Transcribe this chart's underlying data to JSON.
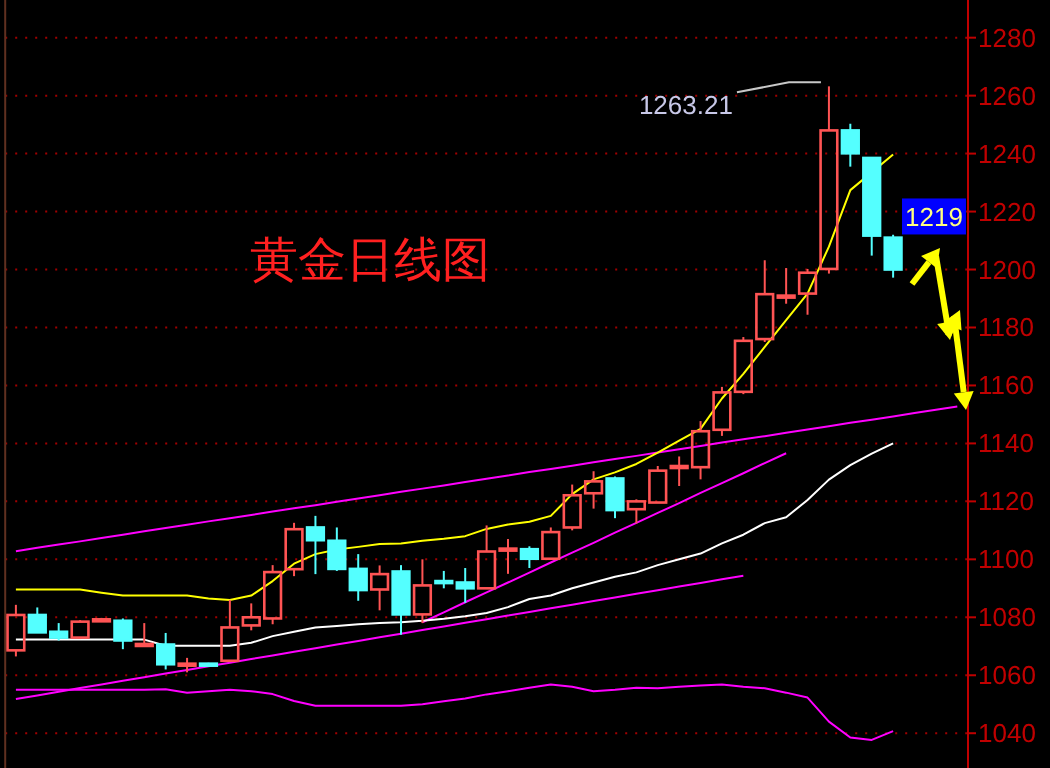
{
  "chart_data": {
    "type": "candlestick",
    "title": "黄金日线图",
    "categories": [
      null,
      null,
      null,
      null,
      null,
      null,
      null,
      null,
      null,
      null,
      null,
      null,
      null,
      null,
      null,
      null,
      null,
      null,
      null,
      null,
      null,
      null,
      null,
      null,
      null,
      null,
      null,
      null,
      null,
      null,
      null,
      null,
      null,
      null,
      null,
      null,
      null,
      null,
      null,
      null,
      null,
      null,
      null,
      null,
      null
    ],
    "ohlc": [
      [
        1068.6,
        1084.3,
        1066.5,
        1080.8
      ],
      [
        1080.8,
        1083.4,
        1074.8,
        1074.8
      ],
      [
        1075,
        1078,
        1072,
        1073
      ],
      [
        1073,
        1079,
        1072.5,
        1078.5
      ],
      [
        1079,
        1079.8,
        1078.6,
        1079.3
      ],
      [
        1078.8,
        1079.6,
        1069,
        1072
      ],
      [
        1070.6,
        1078,
        1070,
        1070.8
      ],
      [
        1070.6,
        1074.6,
        1062,
        1063.8
      ],
      [
        1063.6,
        1066,
        1061,
        1064
      ],
      [
        1064,
        1064.3,
        1063.5,
        1063.6
      ],
      [
        1065,
        1086,
        1065,
        1076.5
      ],
      [
        1077.2,
        1084.8,
        1075.5,
        1080
      ],
      [
        1079.6,
        1098,
        1077.6,
        1095.6
      ],
      [
        1096.6,
        1112.6,
        1094.2,
        1110.4
      ],
      [
        1111,
        1115,
        1094.9,
        1106.6
      ],
      [
        1106.4,
        1111,
        1096,
        1096.7
      ],
      [
        1096.7,
        1101.8,
        1085.7,
        1089.4
      ],
      [
        1089.6,
        1097.9,
        1082.4,
        1094.9
      ],
      [
        1095.8,
        1098,
        1074,
        1081
      ],
      [
        1081,
        1100,
        1078,
        1091
      ],
      [
        1092.5,
        1096,
        1090,
        1092.2
      ],
      [
        1092,
        1097,
        1085,
        1090
      ],
      [
        1090,
        1111.7,
        1090,
        1102.7
      ],
      [
        1103.3,
        1107,
        1095,
        1103.7
      ],
      [
        1103.5,
        1104.5,
        1097,
        1100.2
      ],
      [
        1100.2,
        1111,
        1100.2,
        1109.4
      ],
      [
        1111,
        1125.8,
        1110,
        1122.1
      ],
      [
        1122.8,
        1130.4,
        1117.5,
        1126.9
      ],
      [
        1127.9,
        1128.6,
        1114.2,
        1117
      ],
      [
        1117.3,
        1120.7,
        1112.4,
        1120
      ],
      [
        1119.6,
        1132.2,
        1119.6,
        1130.6
      ],
      [
        1131.8,
        1135.5,
        1125.3,
        1132.2
      ],
      [
        1131.8,
        1147.7,
        1127.6,
        1144.2
      ],
      [
        1144.7,
        1159.5,
        1142.6,
        1157.6
      ],
      [
        1157.8,
        1176.7,
        1157,
        1175.4
      ],
      [
        1176,
        1203.2,
        1175,
        1191.5
      ],
      [
        1190.6,
        1200.5,
        1188.2,
        1191
      ],
      [
        1191.7,
        1200.2,
        1184.4,
        1198.9
      ],
      [
        1200.2,
        1263.21,
        1198.6,
        1248
      ],
      [
        1248,
        1250.3,
        1235.5,
        1240.1
      ],
      [
        1238.5,
        1238.5,
        1204.8,
        1211.7
      ],
      [
        1211,
        1212,
        1197.2,
        1200
      ],
      null,
      null,
      null
    ],
    "colors": [
      "#ff5454",
      "#54ffff",
      "#54ffff",
      "#ff5454",
      "#ff5454",
      "#54ffff",
      "#ff5454",
      "#54ffff",
      "#ff5454",
      "#54ffff",
      "#ff5454",
      "#ff5454",
      "#ff5454",
      "#ff5454",
      "#54ffff",
      "#54ffff",
      "#54ffff",
      "#ff5454",
      "#54ffff",
      "#ff5454",
      "#54ffff",
      "#54ffff",
      "#ff5454",
      "#ff5454",
      "#54ffff",
      "#ff5454",
      "#ff5454",
      "#ff5454",
      "#54ffff",
      "#ff5454",
      "#ff5454",
      "#ff5454",
      "#ff5454",
      "#ff5454",
      "#ff5454",
      "#ff5454",
      "#ff5454",
      "#ff5454",
      "#ff5454",
      "#54ffff",
      "#54ffff",
      "#54ffff",
      null,
      null,
      null
    ],
    "series": [
      {
        "type": "line",
        "color": "#ff00ff",
        "values": [
          1102.8,
          1104.0,
          1105.1,
          1106.2,
          1107.4,
          1108.5,
          1109.7,
          1110.8,
          1111.9,
          1113.1,
          1114.2,
          1115.3,
          1116.5,
          1117.6,
          1118.7,
          1119.9,
          1121.0,
          1122.1,
          1123.3,
          1124.4,
          1125.5,
          1126.7,
          1127.8,
          1128.9,
          1130.1,
          1131.2,
          1132.3,
          1133.5,
          1134.6,
          1135.7,
          1136.9,
          1138.0,
          1139.1,
          1140.3,
          1141.4,
          1142.5,
          1143.7,
          1144.8,
          1145.9,
          1147.1,
          1148.2,
          1149.3,
          1150.5,
          1151.6,
          1152.7
        ]
      },
      {
        "type": "line",
        "color": "#ff00ff",
        "values": [
          1051.8,
          1053.0,
          1054.3,
          1055.6,
          1056.8,
          1058.1,
          1059.3,
          1060.6,
          1061.8,
          1063.1,
          1064.3,
          1065.6,
          1066.8,
          1068.1,
          1069.3,
          1070.6,
          1071.8,
          1073.1,
          1074.3,
          1075.6,
          1076.8,
          1078.1,
          1079.3,
          1080.6,
          1081.8,
          1083.1,
          1084.3,
          1085.6,
          1086.8,
          1088.1,
          1089.3,
          1090.6,
          1091.8,
          1093.1,
          1094.3,
          null,
          null,
          null,
          null,
          null,
          null,
          null,
          null,
          null,
          null
        ]
      },
      {
        "type": "line",
        "color": "#ff00ff",
        "values": [
          null,
          null,
          null,
          null,
          null,
          null,
          null,
          null,
          null,
          null,
          null,
          null,
          null,
          null,
          null,
          null,
          null,
          null,
          null,
          1078.3,
          1081.7,
          1085.2,
          1088.6,
          1092.0,
          1095.4,
          1098.9,
          1102.3,
          1105.7,
          1109.2,
          1112.6,
          1116.0,
          1119.4,
          1122.9,
          1126.3,
          1129.7,
          1133.2,
          1136.6,
          null,
          null,
          null,
          null,
          null,
          null,
          null,
          null
        ]
      },
      {
        "type": "line",
        "color": "#ff00ff",
        "values": [
          1055,
          1055,
          1055,
          1055,
          1055,
          1055,
          1055,
          1055.2,
          1054,
          1054.5,
          1055,
          1054.5,
          1053.5,
          1051.1,
          1049.5,
          1049.5,
          1049.5,
          1049.5,
          1049.5,
          1050,
          1051,
          1052,
          1053.4,
          1054.5,
          1055.7,
          1056.8,
          1056,
          1054.5,
          1055,
          1055.7,
          1055.5,
          1056,
          1056.5,
          1056.8,
          1056,
          1055.5,
          1054,
          1052.3,
          1044,
          1038.5,
          1037.7,
          1040.7,
          null,
          null,
          null
        ]
      },
      {
        "type": "line",
        "color": "#ffffff",
        "values": [
          1072.3,
          1072.3,
          1072.3,
          1072.3,
          1072.3,
          1072.3,
          1072.3,
          1070.2,
          1070.2,
          1070.2,
          1070.2,
          1071.2,
          1073.5,
          1075,
          1076.5,
          1077,
          1077.6,
          1078,
          1078.3,
          1078.8,
          1079.5,
          1080.4,
          1081.5,
          1083.5,
          1086.3,
          1087.5,
          1090,
          1092,
          1094,
          1095.5,
          1098,
          1100,
          1102,
          1105.5,
          1108.5,
          1112.5,
          1114.5,
          1120.5,
          1127.5,
          1132.5,
          1136.5,
          1140,
          null,
          null,
          null
        ]
      },
      {
        "type": "line",
        "color": "#ffff00",
        "values": [
          1089.6,
          1089.6,
          1089.6,
          1089.6,
          1088.5,
          1087.5,
          1087.5,
          1087.5,
          1087.5,
          1086.5,
          1086,
          1087.5,
          1092.5,
          1098.5,
          1101.8,
          1103.4,
          1104.3,
          1105.3,
          1105.5,
          1106.4,
          1107.1,
          1108,
          1110.5,
          1112,
          1113,
          1115,
          1122.5,
          1127.6,
          1130,
          1132.9,
          1136.8,
          1141,
          1145,
          1155.5,
          1164,
          1173.3,
          1182.5,
          1191.7,
          1207.9,
          1227.4,
          null,
          1239.7,
          null,
          null,
          null
        ]
      }
    ],
    "ylim": [
      1028,
      1293
    ],
    "yticks": [
      1040,
      1060,
      1080,
      1100,
      1120,
      1140,
      1160,
      1180,
      1200,
      1220,
      1240,
      1260,
      1280
    ],
    "grid": "y",
    "annotations": [
      "1263.21",
      {
        "text": "1219",
        "y": 1219
      }
    ]
  }
}
